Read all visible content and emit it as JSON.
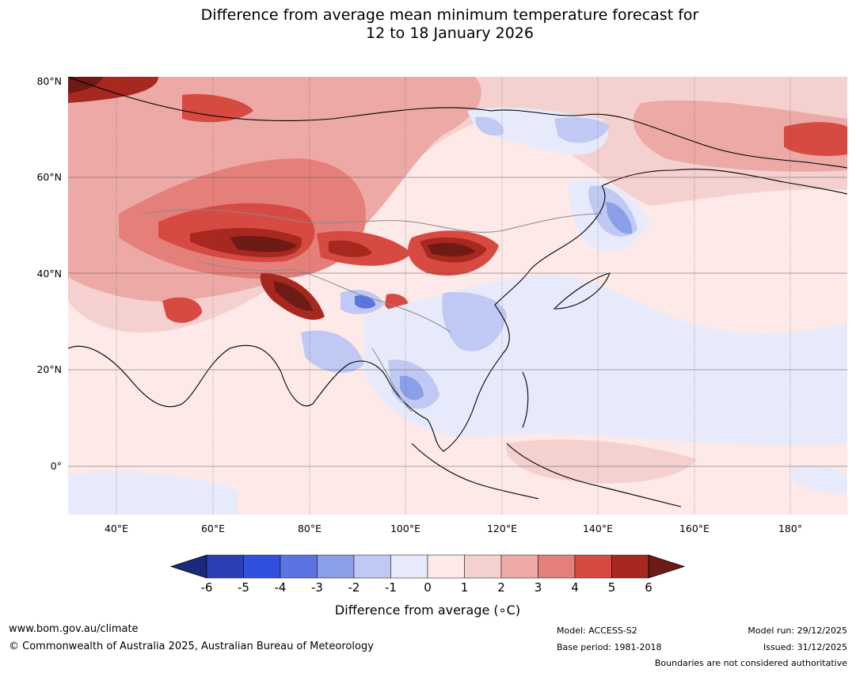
{
  "title": {
    "line1": "Difference from average mean minimum temperature forecast for",
    "line2": "12 to 18 January 2026"
  },
  "map": {
    "lat_labels": [
      "80°N",
      "60°N",
      "40°N",
      "20°N",
      "0°"
    ],
    "lon_labels": [
      "40°E",
      "60°E",
      "80°E",
      "100°E",
      "120°E",
      "140°E",
      "160°E",
      "180°"
    ],
    "extent": {
      "lon_min": 30,
      "lon_max": 190,
      "lat_min": -10,
      "lat_max": 80
    }
  },
  "colorbar": {
    "ticks": [
      "-6",
      "-5",
      "-4",
      "-3",
      "-2",
      "-1",
      "0",
      "1",
      "2",
      "3",
      "4",
      "5",
      "6"
    ],
    "label": "Difference from average (∘C)",
    "colors": [
      "#1b2a7a",
      "#2b3fb3",
      "#3050de",
      "#5b74e2",
      "#8a9ee9",
      "#c0c9f3",
      "#e7eafa",
      "#fce9e8",
      "#f4d0cf",
      "#eca9a6",
      "#e57f79",
      "#d74a42",
      "#a6281f",
      "#6e1a15"
    ]
  },
  "footer": {
    "website": "www.bom.gov.au/climate",
    "copyright": "© Commonwealth of Australia 2025, Australian Bureau of Meteorology",
    "model": "Model: ACCESS-S2",
    "base_period": "Base period: 1981-2018",
    "model_run": "Model run: 29/12/2025",
    "issued": "Issued: 31/12/2025",
    "disclaimer": "Boundaries are not considered authoritative"
  }
}
